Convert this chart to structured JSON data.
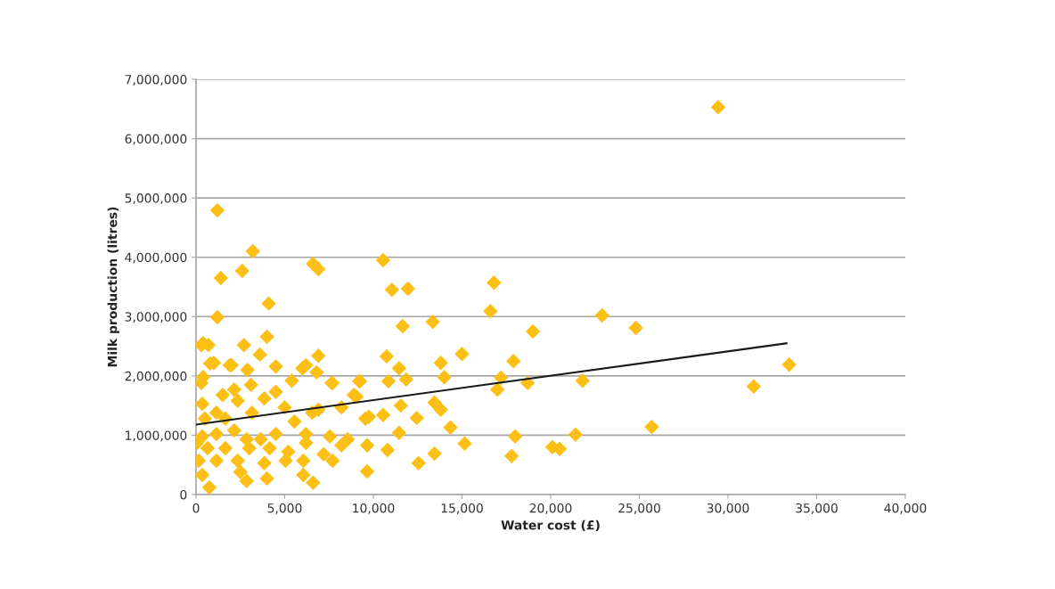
{
  "chart_data": {
    "type": "scatter",
    "xlabel": "Water cost (£)",
    "ylabel": "Milk production (litres)",
    "xlim": [
      0,
      40000
    ],
    "ylim": [
      0,
      7000000
    ],
    "xticks": [
      0,
      {
        "value": 5000,
        "label": "5,000"
      },
      {
        "value": 10000,
        "label": "10,000"
      },
      {
        "value": 15000,
        "label": "15,000"
      },
      {
        "value": 20000,
        "label": "20,000"
      },
      {
        "value": 25000,
        "label": "25,000"
      },
      {
        "value": 30000,
        "label": "30,000"
      },
      {
        "value": 35000,
        "label": "35,000"
      },
      {
        "value": 40000,
        "label": "40,000"
      }
    ],
    "yticks": [
      0,
      {
        "value": 1000000,
        "label": "1,000,000"
      },
      {
        "value": 2000000,
        "label": "2,000,000"
      },
      {
        "value": 3000000,
        "label": "3,000,000"
      },
      {
        "value": 4000000,
        "label": "4,000,000"
      },
      {
        "value": 5000000,
        "label": "5,000,000"
      },
      {
        "value": 6000000,
        "label": "6,000,000"
      },
      {
        "value": 7000000,
        "label": "7,000,000"
      }
    ],
    "grid": "y",
    "marker": "diamond",
    "series": [
      {
        "color": "#fbbf16",
        "x": [
          29450,
          1200,
          3200,
          2600,
          1400,
          6600,
          6900,
          10550,
          11050,
          11950,
          16800,
          16600,
          13350,
          11650,
          4100,
          1200,
          4000,
          22900,
          24800,
          19000,
          2700,
          300,
          700,
          3600,
          6900,
          15000,
          10750,
          17900,
          13800,
          33450,
          11450,
          4500,
          800,
          2000,
          6000,
          17200,
          14000,
          11850,
          10850,
          9250,
          7650,
          18700,
          21800,
          17000,
          31450,
          300,
          13450,
          13800,
          11550,
          10550,
          12450,
          9750,
          9050,
          11450,
          18000,
          21400,
          25700,
          14350,
          15150,
          10800,
          9650,
          20100,
          20500,
          17800,
          13450,
          12550,
          9650,
          6600,
          400,
          1000,
          1900,
          6200,
          2900,
          400,
          5400,
          6800,
          7700,
          9200,
          3100,
          4500,
          1500,
          350,
          2350,
          3850,
          8900,
          5000,
          6550,
          500,
          1650,
          3150,
          5550,
          6900,
          8200,
          9550,
          350,
          1150,
          2150,
          3650,
          4500,
          6200,
          7550,
          8550,
          650,
          1650,
          3000,
          4150,
          5200,
          6200,
          7200,
          8200,
          1150,
          2350,
          3850,
          5050,
          6050,
          7700,
          350,
          2500,
          4000,
          6050,
          750,
          2850,
          150,
          50,
          1150,
          2150,
          2850
        ],
        "values": [
          6530000,
          4790000,
          4100000,
          3770000,
          3650000,
          3890000,
          3800000,
          3950000,
          3450000,
          3470000,
          3570000,
          3090000,
          2910000,
          2840000,
          3220000,
          2990000,
          2660000,
          3020000,
          2810000,
          2750000,
          2520000,
          2520000,
          2520000,
          2360000,
          2340000,
          2370000,
          2330000,
          2250000,
          2220000,
          2190000,
          2130000,
          2160000,
          2210000,
          2180000,
          2130000,
          1970000,
          1980000,
          1940000,
          1910000,
          1910000,
          1880000,
          1880000,
          1920000,
          1770000,
          1820000,
          1880000,
          1550000,
          1430000,
          1500000,
          1340000,
          1290000,
          1310000,
          1650000,
          1040000,
          980000,
          1010000,
          1140000,
          1130000,
          860000,
          750000,
          830000,
          800000,
          770000,
          650000,
          690000,
          530000,
          390000,
          200000,
          2550000,
          2220000,
          2180000,
          2180000,
          2100000,
          1980000,
          1920000,
          2060000,
          1880000,
          1910000,
          1850000,
          1730000,
          1680000,
          1530000,
          1580000,
          1620000,
          1680000,
          1470000,
          1380000,
          1280000,
          1280000,
          1380000,
          1230000,
          1430000,
          1470000,
          1280000,
          980000,
          1020000,
          1080000,
          930000,
          1020000,
          1020000,
          980000,
          930000,
          780000,
          780000,
          780000,
          780000,
          720000,
          870000,
          680000,
          830000,
          570000,
          570000,
          530000,
          570000,
          570000,
          570000,
          330000,
          380000,
          270000,
          330000,
          120000,
          230000,
          570000,
          870000,
          1380000,
          1770000,
          930000
        ]
      },
      {
        "type": "line",
        "color": "#1a1a1a",
        "marker": "none",
        "x": [
          0,
          33300
        ],
        "values": [
          1180000,
          2550000
        ]
      }
    ]
  }
}
